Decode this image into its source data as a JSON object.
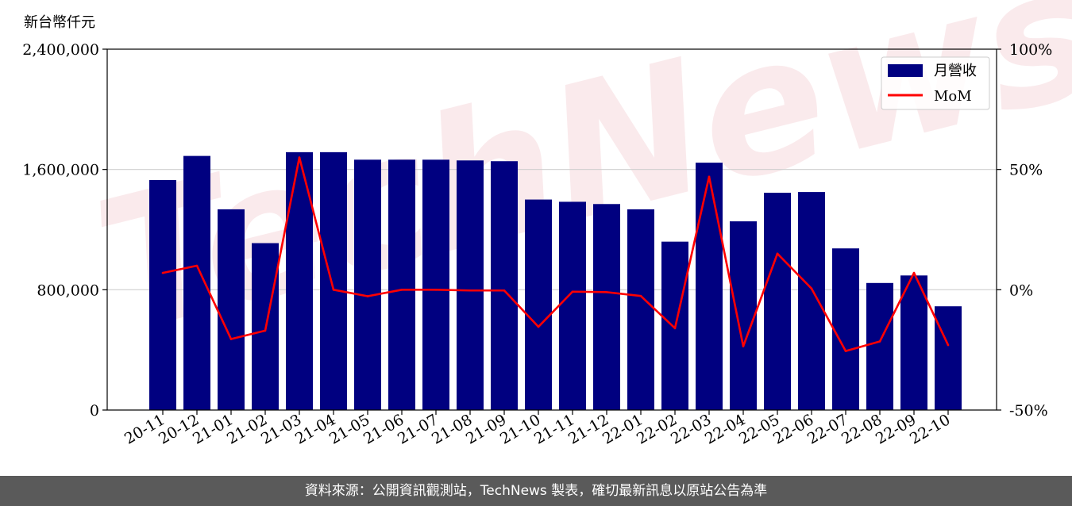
{
  "chart_data": {
    "type": "bar",
    "y_axis_title": "新台幣仟元",
    "categories": [
      "20-11",
      "20-12",
      "21-01",
      "21-02",
      "21-03",
      "21-04",
      "21-05",
      "21-06",
      "21-07",
      "21-08",
      "21-09",
      "21-10",
      "21-11",
      "21-12",
      "22-01",
      "22-02",
      "22-03",
      "22-04",
      "22-05",
      "22-06",
      "22-07",
      "22-08",
      "22-09",
      "22-10"
    ],
    "series": [
      {
        "name": "月營收",
        "type": "bar",
        "axis": "left",
        "color": "#000080",
        "values": [
          1530000,
          1690000,
          1335000,
          1110000,
          1715000,
          1715000,
          1665000,
          1665000,
          1665000,
          1660000,
          1655000,
          1400000,
          1385000,
          1370000,
          1335000,
          1120000,
          1645000,
          1255000,
          1445000,
          1450000,
          1075000,
          845000,
          895000,
          690000
        ]
      },
      {
        "name": "MoM",
        "type": "line",
        "axis": "right",
        "color": "#ff0000",
        "values": [
          7,
          10,
          -20.5,
          -17,
          55,
          0,
          -2.7,
          0,
          0,
          -0.3,
          -0.3,
          -15.4,
          -0.8,
          -1,
          -2.6,
          -16,
          47,
          -23.5,
          15,
          0.5,
          -25.5,
          -21.5,
          7,
          -23
        ]
      }
    ],
    "y_left": {
      "ylim": [
        0,
        2400000
      ],
      "ticks": [
        "0",
        "800,000",
        "1,600,000",
        "2,400,000"
      ]
    },
    "y_right": {
      "ylim": [
        -50,
        100
      ],
      "ticks": [
        "-50%",
        "0%",
        "50%",
        "100%"
      ]
    },
    "grid": "horizontal",
    "legend_position": "top-right"
  },
  "watermark": "TechNews",
  "footer": {
    "text": "資料來源：公開資訊觀測站，TechNews 製表，確切最新訊息以原站公告為準"
  }
}
